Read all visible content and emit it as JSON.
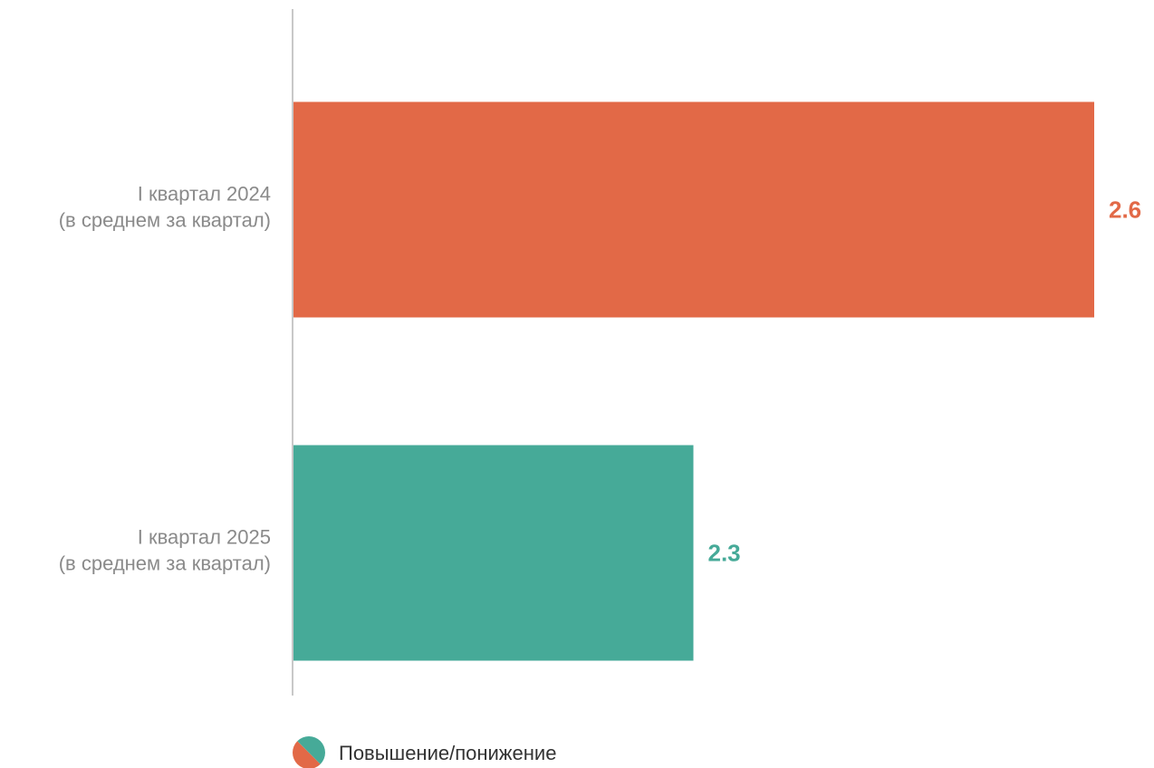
{
  "chart_data": {
    "type": "bar",
    "orientation": "horizontal",
    "categories": [
      [
        "I квартал 2024",
        "(в среднем за квартал)"
      ],
      [
        "I квартал 2025",
        "(в среднем за квартал)"
      ]
    ],
    "values": [
      2.6,
      2.3
    ],
    "value_labels": [
      "2.6",
      "2.3"
    ],
    "bar_colors": [
      "#e26947",
      "#46aa98"
    ],
    "axis_color": "#c8c8c8",
    "xlim": [
      2.0,
      2.6
    ],
    "grid": false,
    "legend": {
      "position": "bottom",
      "label": "Повышение/понижение",
      "colors": [
        "#e26947",
        "#46aa98"
      ]
    }
  }
}
